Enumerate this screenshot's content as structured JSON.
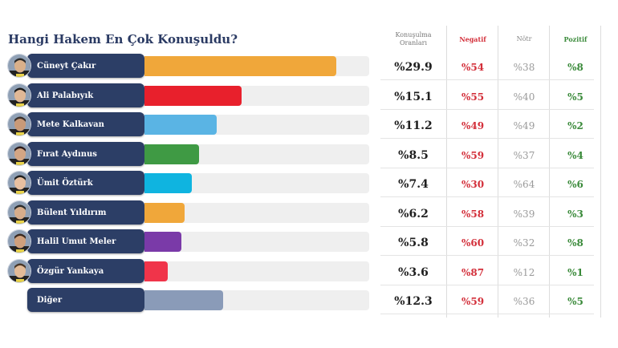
{
  "title": "Hangi Hakem En Çok Konuşuldu?",
  "headers": {
    "conversation_line1": "Konuşulma",
    "conversation_line2": "Oranları",
    "negative": "Negatif",
    "neutral": "Nötr",
    "positive": "Pozitif"
  },
  "chart_data": {
    "type": "bar",
    "orientation": "horizontal",
    "title": "Hangi Hakem En Çok Konuşuldu?",
    "xlim": [
      0,
      35
    ],
    "categories": [
      "Cüneyt Çakır",
      "Ali Palabıyık",
      "Mete Kalkavan",
      "Fırat Aydınus",
      "Ümit Öztürk",
      "Bülent Yıldırım",
      "Halil Umut Meler",
      "Özgür Yankaya",
      "Diğer"
    ],
    "values": [
      29.9,
      15.1,
      11.2,
      8.5,
      7.4,
      6.2,
      5.8,
      3.6,
      12.3
    ],
    "colors": [
      "#f0a73a",
      "#e8202c",
      "#5ab4e4",
      "#3f9a44",
      "#0fb4e0",
      "#f0a73a",
      "#7a3aa8",
      "#f0344a",
      "#8a9bb8"
    ]
  },
  "rows": [
    {
      "name": "Cüneyt Çakır",
      "has_avatar": true,
      "conv": "%29.9",
      "neg": "%54",
      "nom": "%38",
      "poz": "%8"
    },
    {
      "name": "Ali Palabıyık",
      "has_avatar": true,
      "conv": "%15.1",
      "neg": "%55",
      "nom": "%40",
      "poz": "%5"
    },
    {
      "name": "Mete Kalkavan",
      "has_avatar": true,
      "conv": "%11.2",
      "neg": "%49",
      "nom": "%49",
      "poz": "%2"
    },
    {
      "name": "Fırat Aydınus",
      "has_avatar": true,
      "conv": "%8.5",
      "neg": "%59",
      "nom": "%37",
      "poz": "%4"
    },
    {
      "name": "Ümit Öztürk",
      "has_avatar": true,
      "conv": "%7.4",
      "neg": "%30",
      "nom": "%64",
      "poz": "%6"
    },
    {
      "name": "Bülent Yıldırım",
      "has_avatar": true,
      "conv": "%6.2",
      "neg": "%58",
      "nom": "%39",
      "poz": "%3"
    },
    {
      "name": "Halil Umut Meler",
      "has_avatar": true,
      "conv": "%5.8",
      "neg": "%60",
      "nom": "%32",
      "poz": "%8"
    },
    {
      "name": "Özgür Yankaya",
      "has_avatar": true,
      "conv": "%3.6",
      "neg": "%87",
      "nom": "%12",
      "poz": "%1"
    },
    {
      "name": "Diğer",
      "has_avatar": false,
      "conv": "%12.3",
      "neg": "%59",
      "nom": "%36",
      "poz": "%5"
    }
  ]
}
